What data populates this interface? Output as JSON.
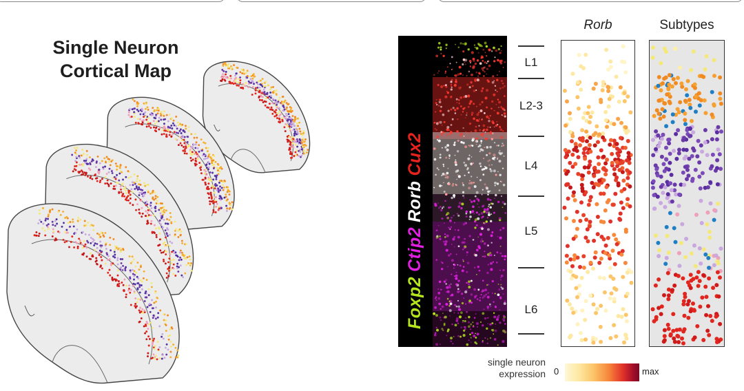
{
  "figure": {
    "title_lines": [
      "Single Neuron",
      "Cortical Map"
    ],
    "markers": [
      {
        "name": "Foxp2",
        "color": "#b5e61d"
      },
      {
        "name": "Ctip2",
        "color": "#e020e0"
      },
      {
        "name": "Rorb",
        "color": "#ffffff"
      },
      {
        "name": "Cux2",
        "color": "#e8231e"
      }
    ],
    "layers": [
      "L1",
      "L2-3",
      "L4",
      "L5",
      "L6"
    ],
    "panels": {
      "rorb": "Rorb",
      "subtypes": "Subtypes"
    },
    "legend": {
      "label_lines": [
        "single neuron",
        "expression"
      ],
      "min": "0",
      "max": "max"
    },
    "colors": {
      "subtype_orange": "#f08a22",
      "subtype_purple": "#6a3aa8",
      "subtype_red": "#e0261e",
      "subtype_yellow": "#f5e87a",
      "subtype_blue": "#1f7fc4",
      "subtype_pink": "#f0a0b8",
      "subtype_lavender": "#c9a8e0",
      "section_fill": "#ececec"
    }
  }
}
